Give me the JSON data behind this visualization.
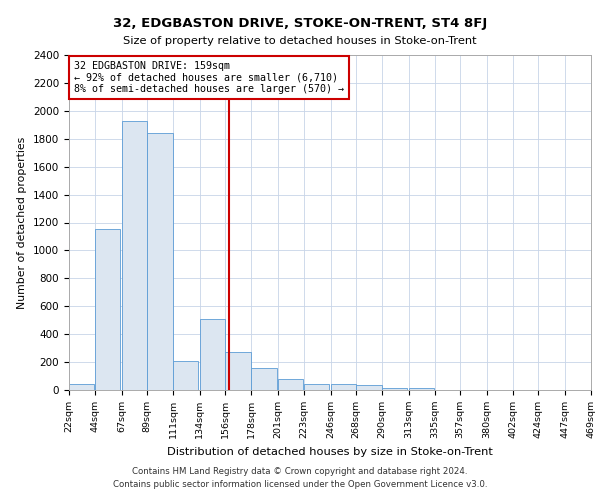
{
  "title": "32, EDGBASTON DRIVE, STOKE-ON-TRENT, ST4 8FJ",
  "subtitle": "Size of property relative to detached houses in Stoke-on-Trent",
  "xlabel": "Distribution of detached houses by size in Stoke-on-Trent",
  "ylabel": "Number of detached properties",
  "footer1": "Contains HM Land Registry data © Crown copyright and database right 2024.",
  "footer2": "Contains public sector information licensed under the Open Government Licence v3.0.",
  "annotation_line1": "32 EDGBASTON DRIVE: 159sqm",
  "annotation_line2": "← 92% of detached houses are smaller (6,710)",
  "annotation_line3": "8% of semi-detached houses are larger (570) →",
  "property_size": 159,
  "bar_edge_color": "#5b9bd5",
  "bar_face_color": "#dce6f1",
  "grid_color": "#c8d4e8",
  "vline_color": "#cc0000",
  "annotation_box_edge": "#cc0000",
  "bins": [
    22,
    44,
    67,
    89,
    111,
    134,
    156,
    178,
    201,
    223,
    246,
    268,
    290,
    313,
    335,
    357,
    380,
    402,
    424,
    447,
    469
  ],
  "bin_labels": [
    "22sqm",
    "44sqm",
    "67sqm",
    "89sqm",
    "111sqm",
    "134sqm",
    "156sqm",
    "178sqm",
    "201sqm",
    "223sqm",
    "246sqm",
    "268sqm",
    "290sqm",
    "313sqm",
    "335sqm",
    "357sqm",
    "380sqm",
    "402sqm",
    "424sqm",
    "447sqm",
    "469sqm"
  ],
  "values": [
    40,
    1150,
    1930,
    1840,
    210,
    510,
    270,
    155,
    80,
    45,
    45,
    35,
    15,
    15,
    0,
    0,
    0,
    0,
    0,
    0
  ],
  "ylim": [
    0,
    2400
  ],
  "yticks": [
    0,
    200,
    400,
    600,
    800,
    1000,
    1200,
    1400,
    1600,
    1800,
    2000,
    2200,
    2400
  ]
}
